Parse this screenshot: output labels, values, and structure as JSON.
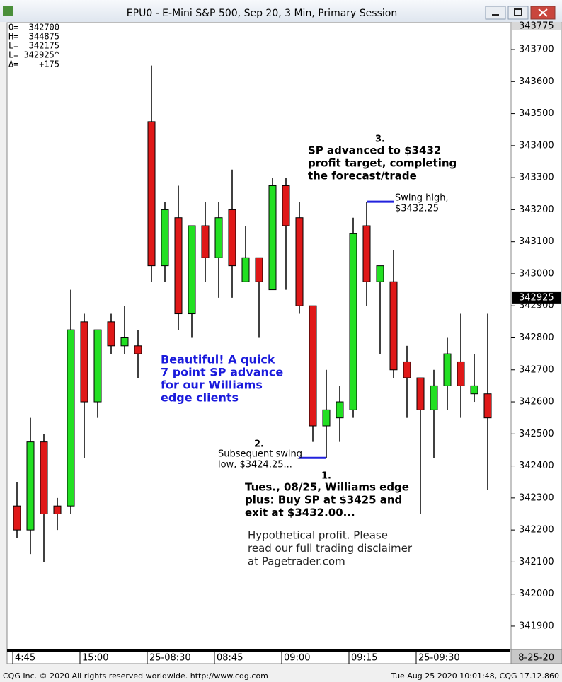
{
  "window": {
    "title": "EPU0 - E-Mini S&P 500, Sep 20, 3 Min, Primary Session"
  },
  "ohlc_box": [
    {
      "label": "O=",
      "value": "342700"
    },
    {
      "label": "H=",
      "value": "344875"
    },
    {
      "label": "L=",
      "value": "342175"
    },
    {
      "label": "L=",
      "value": "342925^"
    },
    {
      "label": "Δ=",
      "value": "+175"
    }
  ],
  "status_bar": {
    "left": "CQG Inc. © 2020 All rights reserved worldwide. http://www.cqg.com",
    "right": "Tue Aug 25 2020 10:01:48, CQG 17.12.860"
  },
  "chart_data": {
    "type": "candlestick",
    "categories": [
      "4:45",
      null,
      null,
      null,
      null,
      "15:00",
      null,
      null,
      null,
      null,
      "25-08:30",
      null,
      null,
      null,
      null,
      "08:45",
      null,
      null,
      null,
      null,
      "09:00",
      null,
      null,
      null,
      null,
      "09:15",
      null,
      null,
      null,
      null,
      "25-09:30",
      null,
      null,
      null,
      null,
      null
    ],
    "open": [
      342275,
      342200,
      342475,
      342275,
      342275,
      342850,
      342600,
      342850,
      342775,
      342775,
      343475,
      343025,
      343175,
      342875,
      343150,
      343050,
      343200,
      342975,
      343050,
      342950,
      343275,
      343175,
      342900,
      342525,
      342550,
      342575,
      343150,
      342975,
      342975,
      342725,
      342675,
      342575,
      342650,
      342725,
      342625,
      342625
    ],
    "high": [
      342350,
      342550,
      342500,
      342300,
      342950,
      342875,
      342825,
      342875,
      342900,
      342825,
      343650,
      343225,
      343275,
      343150,
      343225,
      343225,
      343325,
      343150,
      343050,
      343300,
      343300,
      343225,
      342900,
      342700,
      342650,
      343175,
      343225,
      343025,
      343075,
      342775,
      342675,
      342700,
      342800,
      342875,
      342750,
      342875
    ],
    "low": [
      342175,
      342125,
      342100,
      342200,
      342250,
      342425,
      342550,
      342750,
      342750,
      342675,
      342975,
      342975,
      342825,
      342800,
      342975,
      342925,
      342925,
      342975,
      342800,
      342950,
      342950,
      342875,
      342475,
      342425,
      342475,
      342550,
      342900,
      342750,
      342675,
      342550,
      342250,
      342425,
      342575,
      342550,
      342600,
      342325
    ],
    "close": [
      342200,
      342475,
      342250,
      342250,
      342825,
      342600,
      342825,
      342775,
      342800,
      342750,
      343025,
      343200,
      342875,
      343150,
      343050,
      343175,
      343025,
      343050,
      342975,
      343275,
      343150,
      342900,
      342525,
      342575,
      342600,
      343125,
      342975,
      343025,
      342700,
      342675,
      342575,
      342650,
      342750,
      342650,
      342650,
      342550
    ],
    "up_color": "#22e022",
    "down_color": "#e01818",
    "ylim": [
      341827,
      343784
    ],
    "yticks": [
      341900,
      342000,
      342100,
      342200,
      342300,
      342400,
      342500,
      342600,
      342700,
      342800,
      342900,
      343000,
      343100,
      343200,
      343300,
      343400,
      343500,
      343600,
      343700
    ],
    "top_label": 343775,
    "last_price": 342925,
    "date_label": "8-25-20",
    "swing_high": {
      "index": 26,
      "label": [
        "Swing high,",
        "$3432.25"
      ]
    },
    "swing_low": {
      "index": 23,
      "number": "2.",
      "label": [
        "Subsequent swing",
        "low, $3424.25..."
      ]
    },
    "annotations": {
      "target": {
        "number": "3.",
        "lines": [
          "SP advanced to $3432",
          "profit target, completing",
          "the forecast/trade"
        ]
      },
      "promo": [
        "Beautiful! A quick",
        "7 point SP advance",
        "for our Williams",
        "edge clients"
      ],
      "entry": {
        "number": "1.",
        "lines": [
          "Tues., 08/25, Williams edge",
          "plus: Buy SP at $3425 and",
          "exit at $3432.00..."
        ]
      },
      "disclaimer": [
        "Hypothetical profit. Please",
        "read our full trading disclaimer",
        "at Pagetrader.com"
      ]
    }
  }
}
